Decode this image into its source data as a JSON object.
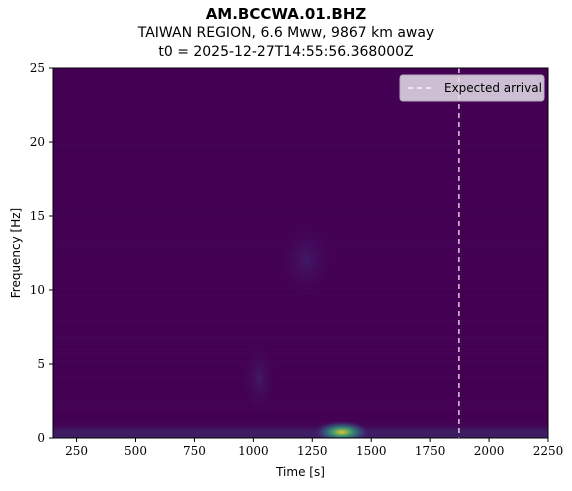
{
  "header": {
    "station": "AM.BCCWA.01.BHZ",
    "event": "TAIWAN REGION, 6.6 Mww, 9867 km away",
    "origin": "t0 = 2025-12-27T14:55:56.368000Z"
  },
  "chart_data": {
    "type": "heatmap",
    "xlabel": "Time [s]",
    "ylabel": "Frequency [Hz]",
    "xlim": [
      150,
      2250
    ],
    "ylim": [
      0,
      25
    ],
    "xticks": [
      250,
      500,
      750,
      1000,
      1250,
      1500,
      1750,
      2000,
      2250
    ],
    "yticks": [
      0,
      5,
      10,
      15,
      20,
      25
    ],
    "colormap": "viridis",
    "background_color": "#440154",
    "expected_arrival_s": 1872,
    "legend": {
      "label": "Expected arrival",
      "placement": "top-right"
    },
    "energy_patches": [
      {
        "t_start": 150,
        "t_end": 2250,
        "f_center": 0.3,
        "intensity": 0.35
      },
      {
        "t_start": 1250,
        "t_end": 1500,
        "f_center": 0.4,
        "intensity": 0.85
      },
      {
        "t_start": 1100,
        "t_end": 1350,
        "f_center": 12,
        "intensity": 0.2
      },
      {
        "t_start": 950,
        "t_end": 1100,
        "f_center": 4,
        "intensity": 0.2
      }
    ]
  }
}
